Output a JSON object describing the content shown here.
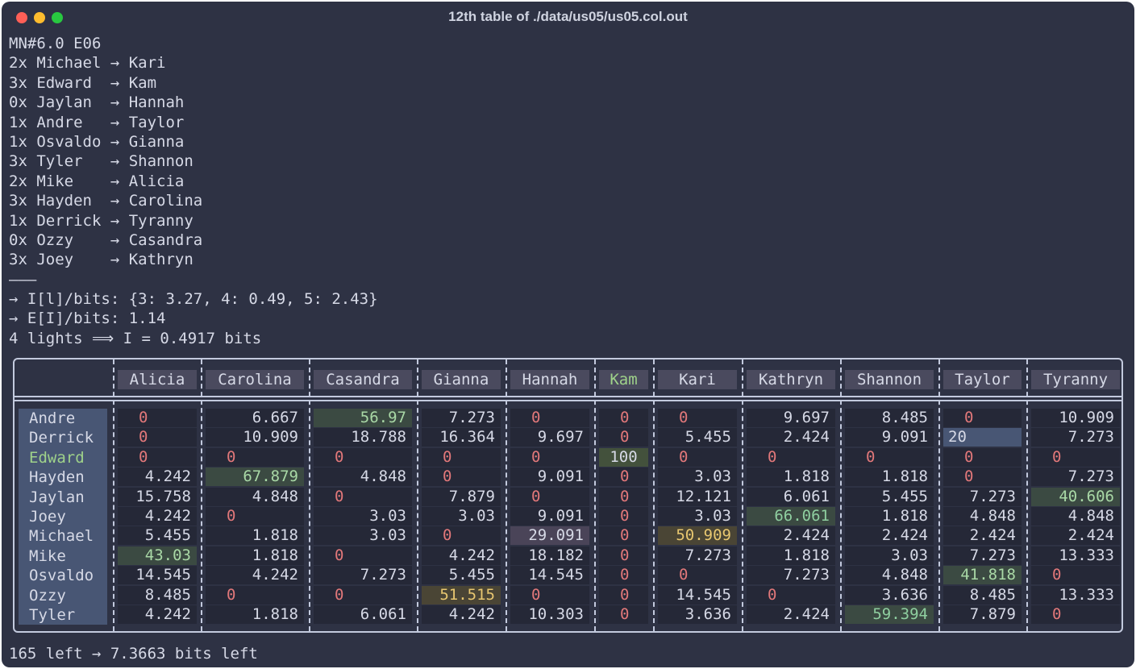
{
  "window": {
    "title": "12th table of ./data/us05/us05.col.out"
  },
  "output_lines": [
    "MN#6.0 E06",
    "2x Michael → Kari",
    "3x Edward  → Kam",
    "0x Jaylan  → Hannah",
    "1x Andre   → Taylor",
    "1x Osvaldo → Gianna",
    "3x Tyler   → Shannon",
    "2x Mike    → Alicia",
    "3x Hayden  → Carolina",
    "1x Derrick → Tyranny",
    "0x Ozzy    → Casandra",
    "3x Joey    → Kathryn",
    "———",
    "→ I[l]/bits: {3: 3.27, 4: 0.49, 5: 2.43}",
    "→ E[I]/bits: 1.14",
    "4 lights ⟹ I = 0.4917 bits"
  ],
  "table": {
    "columns": [
      "Alicia",
      "Carolina",
      "Casandra",
      "Gianna",
      "Hannah",
      "Kam",
      "Kari",
      "Kathryn",
      "Shannon",
      "Taylor",
      "Tyranny"
    ],
    "rows": [
      {
        "name": "Andre",
        "values": [
          "0",
          "6.667",
          "56.97",
          "7.273",
          "0",
          "0",
          "0",
          "9.697",
          "8.485",
          "0",
          "10.909"
        ]
      },
      {
        "name": "Derrick",
        "values": [
          "0",
          "10.909",
          "18.788",
          "16.364",
          "9.697",
          "0",
          "5.455",
          "2.424",
          "9.091",
          "20",
          "7.273"
        ]
      },
      {
        "name": "Edward",
        "values": [
          "0",
          "0",
          "0",
          "0",
          "0",
          "100",
          "0",
          "0",
          "0",
          "0",
          "0"
        ]
      },
      {
        "name": "Hayden",
        "values": [
          "4.242",
          "67.879",
          "4.848",
          "0",
          "9.091",
          "0",
          "3.03",
          "1.818",
          "1.818",
          "0",
          "7.273"
        ]
      },
      {
        "name": "Jaylan",
        "values": [
          "15.758",
          "4.848",
          "0",
          "7.879",
          "0",
          "0",
          "12.121",
          "6.061",
          "5.455",
          "7.273",
          "40.606"
        ]
      },
      {
        "name": "Joey",
        "values": [
          "4.242",
          "0",
          "3.03",
          "3.03",
          "9.091",
          "0",
          "3.03",
          "66.061",
          "1.818",
          "4.848",
          "4.848"
        ]
      },
      {
        "name": "Michael",
        "values": [
          "5.455",
          "1.818",
          "3.03",
          "0",
          "29.091",
          "0",
          "50.909",
          "2.424",
          "2.424",
          "2.424",
          "2.424"
        ]
      },
      {
        "name": "Mike",
        "values": [
          "43.03",
          "1.818",
          "0",
          "4.242",
          "18.182",
          "0",
          "7.273",
          "1.818",
          "3.03",
          "7.273",
          "13.333"
        ]
      },
      {
        "name": "Osvaldo",
        "values": [
          "14.545",
          "4.242",
          "7.273",
          "5.455",
          "14.545",
          "0",
          "0",
          "7.273",
          "4.848",
          "41.818",
          "0"
        ]
      },
      {
        "name": "Ozzy",
        "values": [
          "8.485",
          "0",
          "0",
          "51.515",
          "0",
          "0",
          "14.545",
          "0",
          "3.636",
          "8.485",
          "13.333"
        ]
      },
      {
        "name": "Tyler",
        "values": [
          "4.242",
          "1.818",
          "6.061",
          "4.242",
          "10.303",
          "0",
          "3.636",
          "2.424",
          "59.394",
          "7.879",
          "0"
        ]
      }
    ]
  },
  "footer": "165 left → 7.3663 bits left"
}
